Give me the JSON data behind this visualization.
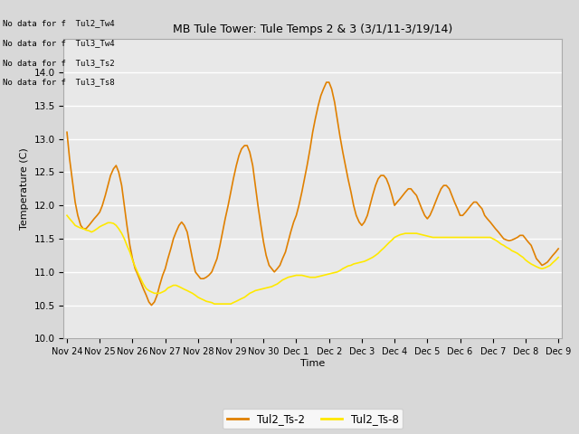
{
  "title": "MB Tule Tower: Tule Temps 2 & 3 (3/1/11-3/19/14)",
  "ylabel": "Temperature (C)",
  "xlabel": "Time",
  "ylim": [
    10.0,
    14.5
  ],
  "figure_bg_color": "#d8d8d8",
  "plot_bg_color": "#e8e8e8",
  "grid_color": "#ffffff",
  "line1_color": "#E08000",
  "line2_color": "#FFE800",
  "legend_labels": [
    "Tul2_Ts-2",
    "Tul2_Ts-8"
  ],
  "no_data_texts": [
    "No data for f  Tul2_Tw4",
    "No data for f  Tul3_Tw4",
    "No data for f  Tul3_Ts2",
    "No data for f  Tul3_Ts8"
  ],
  "xtick_labels": [
    "Nov 24",
    "Nov 25",
    "Nov 26",
    "Nov 27",
    "Nov 28",
    "Nov 29",
    "Nov 30",
    "Dec 1",
    "Dec 2",
    "Dec 3",
    "Dec 4",
    "Dec 5",
    "Dec 6",
    "Dec 7",
    "Dec 8",
    "Dec 9"
  ],
  "ytick_values": [
    10.0,
    10.5,
    11.0,
    11.5,
    12.0,
    12.5,
    13.0,
    13.5,
    14.0
  ],
  "ts2_x": [
    0.0,
    0.08,
    0.17,
    0.25,
    0.33,
    0.42,
    0.5,
    0.58,
    0.67,
    0.75,
    0.83,
    0.92,
    1.0,
    1.08,
    1.17,
    1.25,
    1.33,
    1.42,
    1.5,
    1.58,
    1.67,
    1.75,
    1.83,
    1.92,
    2.0,
    2.08,
    2.17,
    2.25,
    2.33,
    2.42,
    2.5,
    2.58,
    2.67,
    2.75,
    2.83,
    2.92,
    3.0,
    3.08,
    3.17,
    3.25,
    3.33,
    3.42,
    3.5,
    3.58,
    3.67,
    3.75,
    3.83,
    3.92,
    4.0,
    4.08,
    4.17,
    4.25,
    4.33,
    4.42,
    4.5,
    4.58,
    4.67,
    4.75,
    4.83,
    4.92,
    5.0,
    5.08,
    5.17,
    5.25,
    5.33,
    5.42,
    5.5,
    5.58,
    5.67,
    5.75,
    5.83,
    5.92,
    6.0,
    6.08,
    6.17,
    6.25,
    6.33,
    6.42,
    6.5,
    6.58,
    6.67,
    6.75,
    6.83,
    6.92,
    7.0,
    7.08,
    7.17,
    7.25,
    7.33,
    7.42,
    7.5,
    7.58,
    7.67,
    7.75,
    7.83,
    7.92,
    8.0,
    8.08,
    8.17,
    8.25,
    8.33,
    8.42,
    8.5,
    8.58,
    8.67,
    8.75,
    8.83,
    8.92,
    9.0,
    9.08,
    9.17,
    9.25,
    9.33,
    9.42,
    9.5,
    9.58,
    9.67,
    9.75,
    9.83,
    9.92,
    10.0,
    10.08,
    10.17,
    10.25,
    10.33,
    10.42,
    10.5,
    10.58,
    10.67,
    10.75,
    10.83,
    10.92,
    11.0,
    11.08,
    11.17,
    11.25,
    11.33,
    11.42,
    11.5,
    11.58,
    11.67,
    11.75,
    11.83,
    11.92,
    12.0,
    12.08,
    12.17,
    12.25,
    12.33,
    12.42,
    12.5,
    12.58,
    12.67,
    12.75,
    12.83,
    12.92,
    13.0,
    13.08,
    13.17,
    13.25,
    13.33,
    13.42,
    13.5,
    13.58,
    13.67,
    13.75,
    13.83,
    13.92,
    14.0,
    14.08,
    14.17,
    14.25,
    14.33,
    14.42,
    14.5,
    14.58,
    14.67,
    14.75,
    14.83,
    14.92,
    15.0
  ],
  "ts2_y": [
    13.1,
    12.7,
    12.35,
    12.05,
    11.85,
    11.7,
    11.65,
    11.65,
    11.7,
    11.75,
    11.8,
    11.85,
    11.9,
    12.0,
    12.15,
    12.3,
    12.45,
    12.55,
    12.6,
    12.5,
    12.3,
    12.0,
    11.7,
    11.4,
    11.2,
    11.05,
    10.95,
    10.85,
    10.75,
    10.65,
    10.55,
    10.5,
    10.55,
    10.65,
    10.8,
    10.95,
    11.05,
    11.2,
    11.35,
    11.5,
    11.6,
    11.7,
    11.75,
    11.7,
    11.6,
    11.4,
    11.2,
    11.0,
    10.95,
    10.9,
    10.9,
    10.92,
    10.95,
    11.0,
    11.1,
    11.2,
    11.4,
    11.6,
    11.8,
    12.0,
    12.2,
    12.4,
    12.6,
    12.75,
    12.85,
    12.9,
    12.9,
    12.8,
    12.6,
    12.3,
    12.0,
    11.7,
    11.45,
    11.25,
    11.1,
    11.05,
    11.0,
    11.05,
    11.1,
    11.2,
    11.3,
    11.45,
    11.6,
    11.75,
    11.85,
    12.0,
    12.2,
    12.4,
    12.6,
    12.85,
    13.1,
    13.3,
    13.5,
    13.65,
    13.75,
    13.85,
    13.85,
    13.75,
    13.55,
    13.3,
    13.05,
    12.8,
    12.6,
    12.4,
    12.2,
    12.0,
    11.85,
    11.75,
    11.7,
    11.75,
    11.85,
    12.0,
    12.15,
    12.3,
    12.4,
    12.45,
    12.45,
    12.4,
    12.3,
    12.15,
    12.0,
    12.05,
    12.1,
    12.15,
    12.2,
    12.25,
    12.25,
    12.2,
    12.15,
    12.05,
    11.95,
    11.85,
    11.8,
    11.85,
    11.95,
    12.05,
    12.15,
    12.25,
    12.3,
    12.3,
    12.25,
    12.15,
    12.05,
    11.95,
    11.85,
    11.85,
    11.9,
    11.95,
    12.0,
    12.05,
    12.05,
    12.0,
    11.95,
    11.85,
    11.8,
    11.75,
    11.7,
    11.65,
    11.6,
    11.55,
    11.5,
    11.48,
    11.47,
    11.48,
    11.5,
    11.52,
    11.55,
    11.55,
    11.5,
    11.45,
    11.4,
    11.3,
    11.2,
    11.15,
    11.1,
    11.12,
    11.15,
    11.2,
    11.25,
    11.3,
    11.35
  ],
  "ts8_x": [
    0.0,
    0.08,
    0.17,
    0.25,
    0.33,
    0.42,
    0.5,
    0.58,
    0.67,
    0.75,
    0.83,
    0.92,
    1.0,
    1.08,
    1.17,
    1.25,
    1.33,
    1.42,
    1.5,
    1.58,
    1.67,
    1.75,
    1.83,
    1.92,
    2.0,
    2.08,
    2.17,
    2.25,
    2.33,
    2.42,
    2.5,
    2.58,
    2.67,
    2.75,
    2.83,
    2.92,
    3.0,
    3.08,
    3.17,
    3.25,
    3.33,
    3.42,
    3.5,
    3.58,
    3.67,
    3.75,
    3.83,
    3.92,
    4.0,
    4.08,
    4.17,
    4.25,
    4.33,
    4.42,
    4.5,
    4.58,
    4.67,
    4.75,
    4.83,
    4.92,
    5.0,
    5.08,
    5.17,
    5.25,
    5.33,
    5.42,
    5.5,
    5.58,
    5.67,
    5.75,
    5.83,
    5.92,
    6.0,
    6.08,
    6.17,
    6.25,
    6.33,
    6.42,
    6.5,
    6.58,
    6.67,
    6.75,
    6.83,
    6.92,
    7.0,
    7.08,
    7.17,
    7.25,
    7.33,
    7.42,
    7.5,
    7.58,
    7.67,
    7.75,
    7.83,
    7.92,
    8.0,
    8.08,
    8.17,
    8.25,
    8.33,
    8.42,
    8.5,
    8.58,
    8.67,
    8.75,
    8.83,
    8.92,
    9.0,
    9.08,
    9.17,
    9.25,
    9.33,
    9.42,
    9.5,
    9.58,
    9.67,
    9.75,
    9.83,
    9.92,
    10.0,
    10.08,
    10.17,
    10.25,
    10.33,
    10.42,
    10.5,
    10.58,
    10.67,
    10.75,
    10.83,
    10.92,
    11.0,
    11.08,
    11.17,
    11.25,
    11.33,
    11.42,
    11.5,
    11.58,
    11.67,
    11.75,
    11.83,
    11.92,
    12.0,
    12.08,
    12.17,
    12.25,
    12.33,
    12.42,
    12.5,
    12.58,
    12.67,
    12.75,
    12.83,
    12.92,
    13.0,
    13.08,
    13.17,
    13.25,
    13.33,
    13.42,
    13.5,
    13.58,
    13.67,
    13.75,
    13.83,
    13.92,
    14.0,
    14.08,
    14.17,
    14.25,
    14.33,
    14.42,
    14.5,
    14.58,
    14.67,
    14.75,
    14.83,
    14.92,
    15.0
  ],
  "ts8_y": [
    11.85,
    11.8,
    11.75,
    11.7,
    11.68,
    11.66,
    11.65,
    11.63,
    11.62,
    11.6,
    11.62,
    11.65,
    11.68,
    11.7,
    11.72,
    11.74,
    11.74,
    11.73,
    11.7,
    11.65,
    11.58,
    11.5,
    11.4,
    11.3,
    11.18,
    11.08,
    10.98,
    10.9,
    10.82,
    10.75,
    10.72,
    10.7,
    10.68,
    10.68,
    10.68,
    10.7,
    10.72,
    10.76,
    10.78,
    10.8,
    10.8,
    10.78,
    10.76,
    10.74,
    10.72,
    10.7,
    10.68,
    10.65,
    10.62,
    10.6,
    10.58,
    10.56,
    10.55,
    10.54,
    10.52,
    10.52,
    10.52,
    10.52,
    10.52,
    10.52,
    10.52,
    10.54,
    10.56,
    10.58,
    10.6,
    10.62,
    10.65,
    10.68,
    10.7,
    10.72,
    10.73,
    10.74,
    10.75,
    10.76,
    10.77,
    10.78,
    10.8,
    10.82,
    10.85,
    10.88,
    10.9,
    10.92,
    10.93,
    10.94,
    10.95,
    10.95,
    10.95,
    10.94,
    10.93,
    10.92,
    10.92,
    10.92,
    10.93,
    10.94,
    10.95,
    10.96,
    10.97,
    10.98,
    10.99,
    11.0,
    11.02,
    11.05,
    11.07,
    11.09,
    11.1,
    11.12,
    11.13,
    11.14,
    11.15,
    11.16,
    11.18,
    11.2,
    11.22,
    11.25,
    11.28,
    11.32,
    11.36,
    11.4,
    11.44,
    11.48,
    11.52,
    11.54,
    11.56,
    11.57,
    11.58,
    11.58,
    11.58,
    11.58,
    11.58,
    11.57,
    11.56,
    11.55,
    11.54,
    11.53,
    11.52,
    11.52,
    11.52,
    11.52,
    11.52,
    11.52,
    11.52,
    11.52,
    11.52,
    11.52,
    11.52,
    11.52,
    11.52,
    11.52,
    11.52,
    11.52,
    11.52,
    11.52,
    11.52,
    11.52,
    11.52,
    11.52,
    11.5,
    11.48,
    11.45,
    11.42,
    11.4,
    11.37,
    11.35,
    11.32,
    11.3,
    11.28,
    11.25,
    11.22,
    11.18,
    11.15,
    11.12,
    11.1,
    11.08,
    11.06,
    11.05,
    11.06,
    11.08,
    11.1,
    11.14,
    11.18,
    11.22
  ]
}
